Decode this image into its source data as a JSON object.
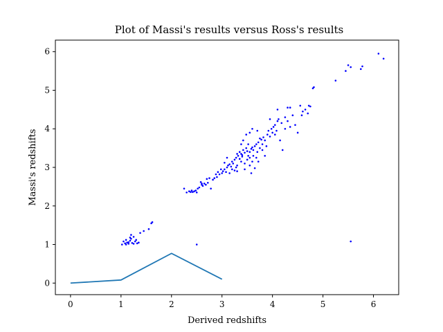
{
  "chart_data": {
    "type": "scatter",
    "title": "Plot of Massi's results versus Ross's results",
    "xlabel": "Derived redshifts",
    "ylabel": "Massi's redshifts",
    "xlim": [
      -0.3,
      6.5
    ],
    "ylim": [
      -0.3,
      6.3
    ],
    "xticks": [
      "0",
      "1",
      "2",
      "3",
      "4",
      "5",
      "6"
    ],
    "yticks": [
      "0",
      "1",
      "2",
      "3",
      "4",
      "5",
      "6"
    ],
    "grid": false,
    "colors": {
      "scatter": "#0000ff",
      "line": "#1f77b4"
    },
    "series": [
      {
        "type": "line",
        "x": [
          0,
          1,
          2,
          3
        ],
        "y": [
          0,
          0.08,
          0.77,
          0.1
        ]
      },
      {
        "type": "scatter",
        "points": [
          [
            1.02,
            1.0
          ],
          [
            1.05,
            1.08
          ],
          [
            1.08,
            1.03
          ],
          [
            1.1,
            1.12
          ],
          [
            1.12,
            1.05
          ],
          [
            1.15,
            1.02
          ],
          [
            1.18,
            1.1
          ],
          [
            1.2,
            1.15
          ],
          [
            1.22,
            1.04
          ],
          [
            1.25,
            1.2
          ],
          [
            1.28,
            1.08
          ],
          [
            1.3,
            1.12
          ],
          [
            1.32,
            1.03
          ],
          [
            1.35,
            1.05
          ],
          [
            1.38,
            1.3
          ],
          [
            1.2,
            1.25
          ],
          [
            1.45,
            1.35
          ],
          [
            1.55,
            1.4
          ],
          [
            1.6,
            1.55
          ],
          [
            1.62,
            1.58
          ],
          [
            1.1,
            1.0
          ],
          [
            1.25,
            1.02
          ],
          [
            1.15,
            1.06
          ],
          [
            1.18,
            1.18
          ],
          [
            2.25,
            2.45
          ],
          [
            2.35,
            2.38
          ],
          [
            2.38,
            2.36
          ],
          [
            2.42,
            2.36
          ],
          [
            2.45,
            2.38
          ],
          [
            2.48,
            2.4
          ],
          [
            2.5,
            2.35
          ],
          [
            2.52,
            2.45
          ],
          [
            2.55,
            2.48
          ],
          [
            2.58,
            2.62
          ],
          [
            2.6,
            2.55
          ],
          [
            2.62,
            2.52
          ],
          [
            2.65,
            2.58
          ],
          [
            2.68,
            2.55
          ],
          [
            2.72,
            2.6
          ],
          [
            2.78,
            2.45
          ],
          [
            2.82,
            2.68
          ],
          [
            2.85,
            2.72
          ],
          [
            2.9,
            2.75
          ],
          [
            2.95,
            2.82
          ],
          [
            3.0,
            2.85
          ],
          [
            3.02,
            2.9
          ],
          [
            3.05,
            2.95
          ],
          [
            3.08,
            2.88
          ],
          [
            3.1,
            3.0
          ],
          [
            3.12,
            3.05
          ],
          [
            3.15,
            3.08
          ],
          [
            3.18,
            3.02
          ],
          [
            3.2,
            3.15
          ],
          [
            3.22,
            3.1
          ],
          [
            3.25,
            3.2
          ],
          [
            3.28,
            3.25
          ],
          [
            3.3,
            3.05
          ],
          [
            3.32,
            3.3
          ],
          [
            3.35,
            3.22
          ],
          [
            3.38,
            3.35
          ],
          [
            3.4,
            3.28
          ],
          [
            3.42,
            3.45
          ],
          [
            3.45,
            3.38
          ],
          [
            3.48,
            3.5
          ],
          [
            3.5,
            3.42
          ],
          [
            3.52,
            3.3
          ],
          [
            3.55,
            3.25
          ],
          [
            3.58,
            3.48
          ],
          [
            3.6,
            3.52
          ],
          [
            3.62,
            3.45
          ],
          [
            3.65,
            3.55
          ],
          [
            3.68,
            3.6
          ],
          [
            3.7,
            3.4
          ],
          [
            3.72,
            3.65
          ],
          [
            3.75,
            3.5
          ],
          [
            3.78,
            3.72
          ],
          [
            3.8,
            3.6
          ],
          [
            3.82,
            3.78
          ],
          [
            3.85,
            3.7
          ],
          [
            3.88,
            3.55
          ],
          [
            3.9,
            3.85
          ],
          [
            3.92,
            3.95
          ],
          [
            3.95,
            3.8
          ],
          [
            3.98,
            4.0
          ],
          [
            4.0,
            3.9
          ],
          [
            4.02,
            4.05
          ],
          [
            4.05,
            4.1
          ],
          [
            4.08,
            3.95
          ],
          [
            4.1,
            4.2
          ],
          [
            4.12,
            4.25
          ],
          [
            4.15,
            3.7
          ],
          [
            4.18,
            4.15
          ],
          [
            4.2,
            3.45
          ],
          [
            4.25,
            4.3
          ],
          [
            4.3,
            4.2
          ],
          [
            4.35,
            4.05
          ],
          [
            4.4,
            4.35
          ],
          [
            4.45,
            4.1
          ],
          [
            4.5,
            3.9
          ],
          [
            4.55,
            4.6
          ],
          [
            4.6,
            4.45
          ],
          [
            4.65,
            4.5
          ],
          [
            4.7,
            4.4
          ],
          [
            4.75,
            4.58
          ],
          [
            4.8,
            5.05
          ],
          [
            4.82,
            5.08
          ],
          [
            5.25,
            5.25
          ],
          [
            5.45,
            5.5
          ],
          [
            5.5,
            5.65
          ],
          [
            5.55,
            5.6
          ],
          [
            5.75,
            5.55
          ],
          [
            5.78,
            5.62
          ],
          [
            6.1,
            5.95
          ],
          [
            6.2,
            5.82
          ],
          [
            2.5,
            1.0
          ],
          [
            5.55,
            1.08
          ],
          [
            3.3,
            3.35
          ],
          [
            3.35,
            3.4
          ],
          [
            3.4,
            3.32
          ],
          [
            3.45,
            3.1
          ],
          [
            3.5,
            3.2
          ],
          [
            3.55,
            3.05
          ],
          [
            3.6,
            3.15
          ],
          [
            3.65,
            2.98
          ],
          [
            3.2,
            2.95
          ],
          [
            3.25,
            2.92
          ],
          [
            3.15,
            2.85
          ],
          [
            3.05,
            3.12
          ],
          [
            2.98,
            2.95
          ],
          [
            3.1,
            3.25
          ],
          [
            3.38,
            3.6
          ],
          [
            3.42,
            3.7
          ],
          [
            3.48,
            3.85
          ],
          [
            3.55,
            3.9
          ],
          [
            3.6,
            4.0
          ],
          [
            3.7,
            3.95
          ],
          [
            3.75,
            3.75
          ],
          [
            3.8,
            3.45
          ],
          [
            3.85,
            3.3
          ],
          [
            3.45,
            2.95
          ],
          [
            3.3,
            2.9
          ],
          [
            3.55,
            3.4
          ],
          [
            3.62,
            3.3
          ],
          [
            3.68,
            3.25
          ],
          [
            3.72,
            3.15
          ],
          [
            3.38,
            3.15
          ],
          [
            3.28,
            3.0
          ],
          [
            3.52,
            3.6
          ],
          [
            3.58,
            2.85
          ],
          [
            2.3,
            2.35
          ],
          [
            2.4,
            2.4
          ],
          [
            2.6,
            2.58
          ],
          [
            2.7,
            2.7
          ],
          [
            2.75,
            2.72
          ],
          [
            2.88,
            2.82
          ],
          [
            2.92,
            2.88
          ],
          [
            3.95,
            4.25
          ],
          [
            4.05,
            3.85
          ],
          [
            4.1,
            4.5
          ],
          [
            4.25,
            4.0
          ],
          [
            4.3,
            4.55
          ],
          [
            4.35,
            4.55
          ],
          [
            4.72,
            4.6
          ],
          [
            4.58,
            4.35
          ]
        ]
      }
    ]
  }
}
